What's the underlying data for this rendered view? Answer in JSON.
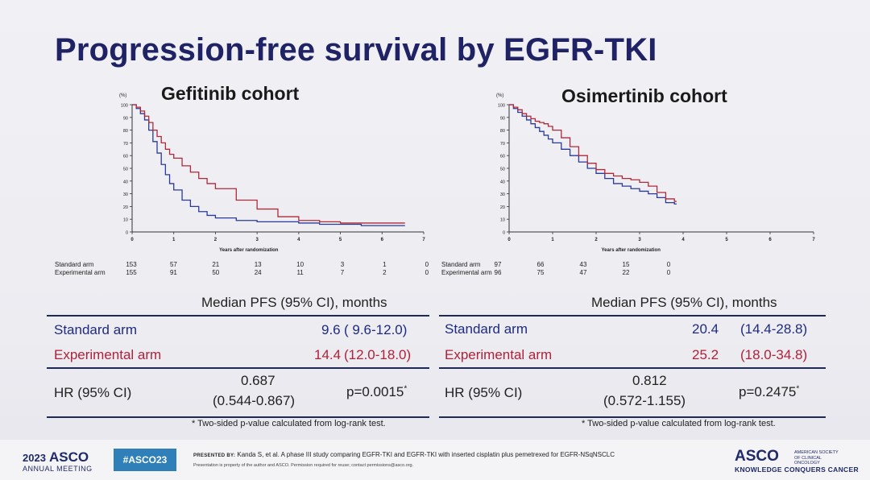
{
  "slide": {
    "title": "Progression-free survival by EGFR-TKI"
  },
  "chart_data": [
    {
      "type": "line",
      "title": "Gefitinib cohort",
      "xlabel": "Years after randomization",
      "ylabel": "(%)",
      "xlim": [
        0,
        7
      ],
      "ylim": [
        0,
        100
      ],
      "x_ticks": [
        "0",
        "1",
        "2",
        "3",
        "4",
        "5",
        "6",
        "7"
      ],
      "y_ticks": [
        "0",
        "10",
        "20",
        "30",
        "40",
        "50",
        "60",
        "70",
        "80",
        "90",
        "100"
      ],
      "series": [
        {
          "name": "Standard arm",
          "color": "#2a3a9a",
          "x": [
            0,
            0.1,
            0.2,
            0.3,
            0.4,
            0.5,
            0.6,
            0.7,
            0.8,
            0.9,
            1.0,
            1.2,
            1.4,
            1.6,
            1.8,
            2.0,
            2.5,
            3.0,
            3.5,
            4.0,
            4.5,
            5.0,
            5.5,
            6.0,
            6.5
          ],
          "y": [
            100,
            97,
            93,
            88,
            80,
            71,
            62,
            53,
            45,
            38,
            33,
            25,
            20,
            16,
            13,
            11,
            9,
            8,
            8,
            7,
            6,
            6,
            5,
            5,
            5
          ]
        },
        {
          "name": "Experimental arm",
          "color": "#b02a3a",
          "x": [
            0,
            0.1,
            0.2,
            0.3,
            0.4,
            0.5,
            0.6,
            0.7,
            0.8,
            0.9,
            1.0,
            1.2,
            1.4,
            1.6,
            1.8,
            2.0,
            2.5,
            3.0,
            3.5,
            4.0,
            4.5,
            5.0,
            5.5,
            6.0,
            6.5
          ],
          "y": [
            100,
            98,
            95,
            91,
            86,
            80,
            75,
            70,
            65,
            61,
            58,
            52,
            47,
            42,
            38,
            34,
            25,
            18,
            12,
            9,
            8,
            7,
            7,
            7,
            7
          ]
        }
      ],
      "risk_table": {
        "timepoints": [
          "0",
          "1",
          "2",
          "3",
          "4",
          "5",
          "6",
          "7"
        ],
        "rows": [
          {
            "label": "Standard arm",
            "values": [
              "153",
              "57",
              "21",
              "13",
              "10",
              "3",
              "1",
              "0"
            ]
          },
          {
            "label": "Experimental arm",
            "values": [
              "155",
              "91",
              "50",
              "24",
              "11",
              "7",
              "2",
              "0"
            ]
          }
        ]
      }
    },
    {
      "type": "line",
      "title": "Osimertinib cohort",
      "xlabel": "Years after randomization",
      "ylabel": "(%)",
      "xlim": [
        0,
        7
      ],
      "ylim": [
        0,
        100
      ],
      "x_ticks": [
        "0",
        "1",
        "2",
        "3",
        "4",
        "5",
        "6",
        "7"
      ],
      "y_ticks": [
        "0",
        "10",
        "20",
        "30",
        "40",
        "50",
        "60",
        "70",
        "80",
        "90",
        "100"
      ],
      "series": [
        {
          "name": "Standard arm",
          "color": "#2a3a9a",
          "x": [
            0,
            0.1,
            0.2,
            0.3,
            0.4,
            0.5,
            0.6,
            0.7,
            0.8,
            0.9,
            1.0,
            1.2,
            1.4,
            1.6,
            1.8,
            2.0,
            2.2,
            2.4,
            2.6,
            2.8,
            3.0,
            3.2,
            3.4,
            3.6,
            3.8
          ],
          "y": [
            100,
            97,
            94,
            91,
            88,
            85,
            82,
            79,
            76,
            73,
            70,
            65,
            60,
            55,
            50,
            46,
            42,
            38,
            36,
            34,
            32,
            30,
            27,
            23,
            22
          ]
        },
        {
          "name": "Experimental arm",
          "color": "#b02a3a",
          "x": [
            0,
            0.1,
            0.2,
            0.3,
            0.4,
            0.5,
            0.6,
            0.7,
            0.8,
            0.9,
            1.0,
            1.2,
            1.4,
            1.6,
            1.8,
            2.0,
            2.2,
            2.4,
            2.6,
            2.8,
            3.0,
            3.2,
            3.4,
            3.6,
            3.8
          ],
          "y": [
            100,
            98,
            96,
            93,
            91,
            89,
            87,
            86,
            85,
            83,
            80,
            74,
            67,
            60,
            54,
            49,
            46,
            44,
            42,
            41,
            39,
            36,
            31,
            26,
            24
          ]
        }
      ],
      "risk_table": {
        "timepoints": [
          "0",
          "1",
          "2",
          "3",
          "4"
        ],
        "rows": [
          {
            "label": "Standard arm",
            "values": [
              "97",
              "66",
              "43",
              "15",
              "0"
            ]
          },
          {
            "label": "Experimental arm",
            "values": [
              "96",
              "75",
              "47",
              "22",
              "0"
            ]
          }
        ]
      }
    }
  ],
  "tables": [
    {
      "header": "Median PFS (95% CI), months",
      "rows": [
        {
          "label": "Standard arm",
          "median": "9.6",
          "ci": "( 9.6-12.0)"
        },
        {
          "label": "Experimental arm",
          "median": "14.4",
          "ci": "(12.0-18.0)"
        }
      ],
      "hr_label": "HR (95% CI)",
      "hr_value": "0.687",
      "hr_ci": "(0.544-0.867)",
      "p": "p=0.0015",
      "p_mark": "*",
      "footnote": "* Two-sided p-value calculated from log-rank test."
    },
    {
      "header": "Median PFS (95% CI), months",
      "rows": [
        {
          "label": "Standard arm",
          "median": "20.4",
          "ci": "(14.4-28.8)"
        },
        {
          "label": "Experimental arm",
          "median": "25.2",
          "ci": "(18.0-34.8)"
        }
      ],
      "hr_label": "HR (95% CI)",
      "hr_value": "0.812",
      "hr_ci": "(0.572-1.155)",
      "p": "p=0.2475",
      "p_mark": "*",
      "footnote": "* Two-sided p-value calculated from log-rank test."
    }
  ],
  "footer": {
    "meeting_year": "2023",
    "meeting_name": "ASCO",
    "meeting_sub": "ANNUAL MEETING",
    "hashtag": "#ASCO23",
    "presented_by_label": "PRESENTED BY:",
    "presented_by_text": "Kanda S, et al. A phase III study comparing EGFR-TKI and EGFR-TKI with inserted cisplatin plus pemetrexed for EGFR-NSqNSCLC",
    "permission_text": "Presentation is property of the author and ASCO. Permission required for reuse; contact permissions@asco.org.",
    "logo": "ASCO",
    "society": "AMERICAN SOCIETY OF CLINICAL ONCOLOGY",
    "tagline": "KNOWLEDGE CONQUERS CANCER"
  }
}
